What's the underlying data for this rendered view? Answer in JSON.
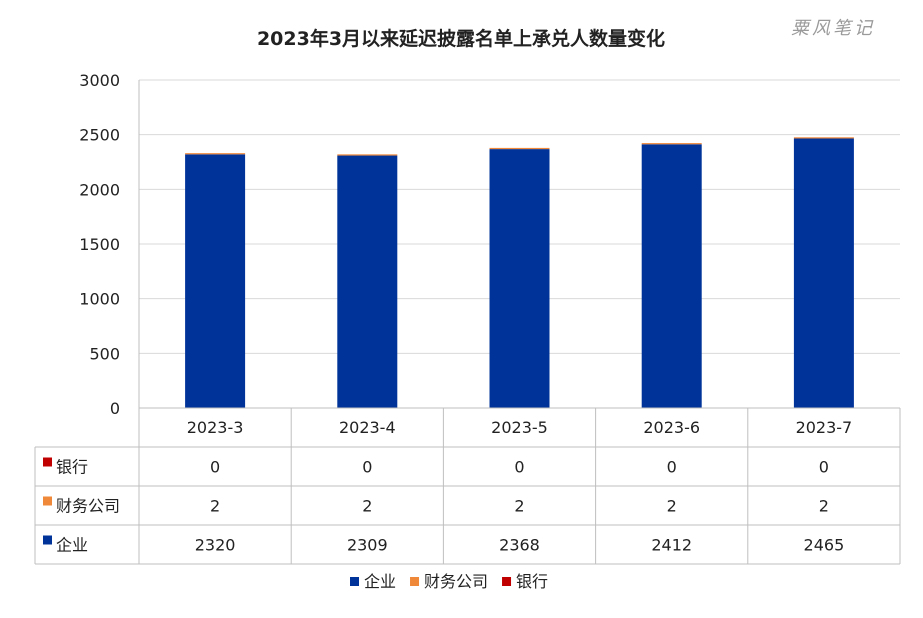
{
  "watermark": "粟风笔记",
  "chart_data": {
    "type": "bar",
    "stacked": true,
    "title": "2023年3月以来延迟披露名单上承兑人数量变化",
    "categories": [
      "2023-3",
      "2023-4",
      "2023-5",
      "2023-6",
      "2023-7"
    ],
    "ylim": [
      0,
      3000
    ],
    "yticks": [
      0,
      500,
      1000,
      1500,
      2000,
      2500,
      3000
    ],
    "grid": true,
    "legend_position": "bottom",
    "data_table": true,
    "series": [
      {
        "name": "企业",
        "color": "#003399",
        "values": [
          2320,
          2309,
          2368,
          2412,
          2465
        ]
      },
      {
        "name": "财务公司",
        "color": "#f0883a",
        "values": [
          2,
          2,
          2,
          2,
          2
        ]
      },
      {
        "name": "银行",
        "color": "#c00000",
        "values": [
          0,
          0,
          0,
          0,
          0
        ]
      }
    ],
    "table_rows_order": [
      "银行",
      "财务公司",
      "企业"
    ]
  }
}
